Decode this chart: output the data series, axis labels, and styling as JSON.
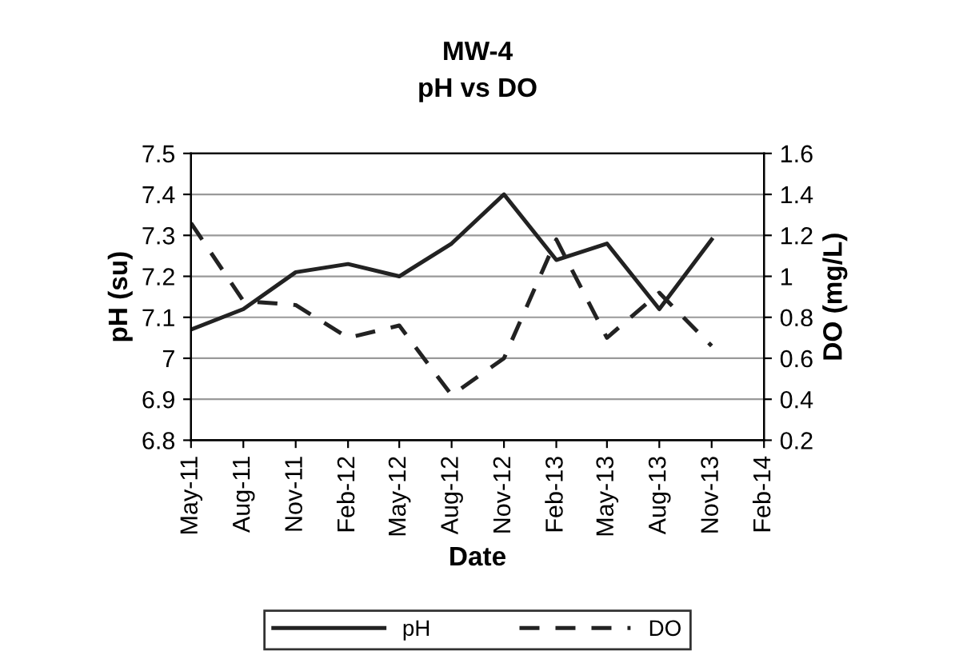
{
  "chart_data": {
    "type": "line",
    "title": "MW-4",
    "subtitle": "pH vs DO",
    "xlabel": "Date",
    "ylabel": "pH (su)",
    "y2label": "DO (mg/L)",
    "x": [
      "2011-05",
      "2011-08",
      "2011-11",
      "2012-02",
      "2012-05",
      "2012-08",
      "2012-11",
      "2013-02",
      "2013-05",
      "2013-08",
      "2013-11"
    ],
    "series": [
      {
        "name": "pH",
        "color": "#222222",
        "line_style": "solid",
        "values": [
          7.07,
          7.12,
          7.21,
          7.23,
          7.2,
          7.28,
          7.4,
          7.24,
          7.28,
          7.12,
          7.29
        ]
      },
      {
        "name": "DO",
        "color": "#222222",
        "line_style": "dashed",
        "axis": "y2",
        "values": [
          1.26,
          0.88,
          0.86,
          0.7,
          0.76,
          0.42,
          0.6,
          1.18,
          0.7,
          0.92,
          0.66
        ]
      }
    ],
    "xlim": [
      "2011-05",
      "2014-02"
    ],
    "xticks": [
      {
        "value": "2011-05",
        "label": "May-11"
      },
      {
        "value": "2011-08",
        "label": "Aug-11"
      },
      {
        "value": "2011-11",
        "label": "Nov-11"
      },
      {
        "value": "2012-02",
        "label": "Feb-12"
      },
      {
        "value": "2012-05",
        "label": "May-12"
      },
      {
        "value": "2012-08",
        "label": "Aug-12"
      },
      {
        "value": "2012-11",
        "label": "Nov-12"
      },
      {
        "value": "2013-02",
        "label": "Feb-13"
      },
      {
        "value": "2013-05",
        "label": "May-13"
      },
      {
        "value": "2013-08",
        "label": "Aug-13"
      },
      {
        "value": "2013-11",
        "label": "Nov-13"
      },
      {
        "value": "2014-02",
        "label": "Feb-14"
      }
    ],
    "ylim": [
      6.8,
      7.5
    ],
    "yticks": [
      6.8,
      6.9,
      7,
      7.1,
      7.2,
      7.3,
      7.4,
      7.5
    ],
    "y2lim": [
      0.2,
      1.6
    ],
    "y2ticks": [
      0.2,
      0.4,
      0.6,
      0.8,
      1,
      1.2,
      1.4,
      1.6
    ],
    "grid": "y",
    "legend": "bottom",
    "marker": "none"
  }
}
